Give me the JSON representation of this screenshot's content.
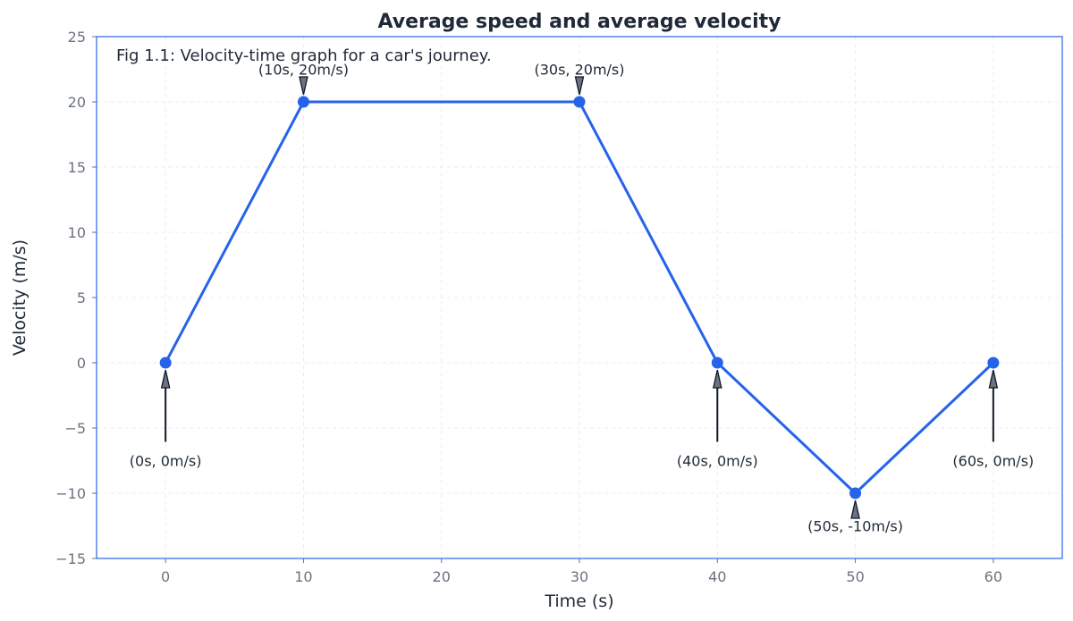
{
  "chart_data": {
    "type": "line",
    "title": "Average speed and average velocity",
    "xlabel": "Time (s)",
    "ylabel": "Velocity (m/s)",
    "caption": "Fig 1.1: Velocity-time graph for a car's journey.",
    "xlim": [
      -5,
      65
    ],
    "ylim": [
      -15,
      25
    ],
    "x_ticks": [
      0,
      10,
      20,
      30,
      40,
      50,
      60
    ],
    "x_tick_labels": [
      "0",
      "10",
      "20",
      "30",
      "40",
      "50",
      "60"
    ],
    "y_ticks": [
      -15,
      -10,
      -5,
      0,
      5,
      10,
      15,
      20,
      25
    ],
    "y_tick_labels": [
      "−15",
      "−10",
      "−5",
      "0",
      "5",
      "10",
      "15",
      "20",
      "25"
    ],
    "grid": true,
    "series": [
      {
        "name": "Velocity",
        "color": "#2563eb",
        "x": [
          0,
          10,
          30,
          40,
          50,
          60
        ],
        "y": [
          0,
          20,
          20,
          0,
          -10,
          0
        ]
      }
    ],
    "annotations": [
      {
        "label": "(0s, 0m/s)",
        "x": 0,
        "y": 0,
        "text_x": 0,
        "text_y": -7.5
      },
      {
        "label": "(10s, 20m/s)",
        "x": 10,
        "y": 20,
        "text_x": 0,
        "text_y": 22.5
      },
      {
        "label": "(30s, 20m/s)",
        "x": 30,
        "y": 20,
        "text_x": 30,
        "text_y": 22.5
      },
      {
        "label": "(40s, 0m/s)",
        "x": 40,
        "y": 0,
        "text_x": 40,
        "text_y": -7.5
      },
      {
        "label": "(50s, -10m/s)",
        "x": 50,
        "y": -10,
        "text_x": 50,
        "text_y": -12.5
      },
      {
        "label": "(60s, 0m/s)",
        "x": 60,
        "y": 0,
        "text_x": 60,
        "text_y": -7.5
      }
    ]
  }
}
